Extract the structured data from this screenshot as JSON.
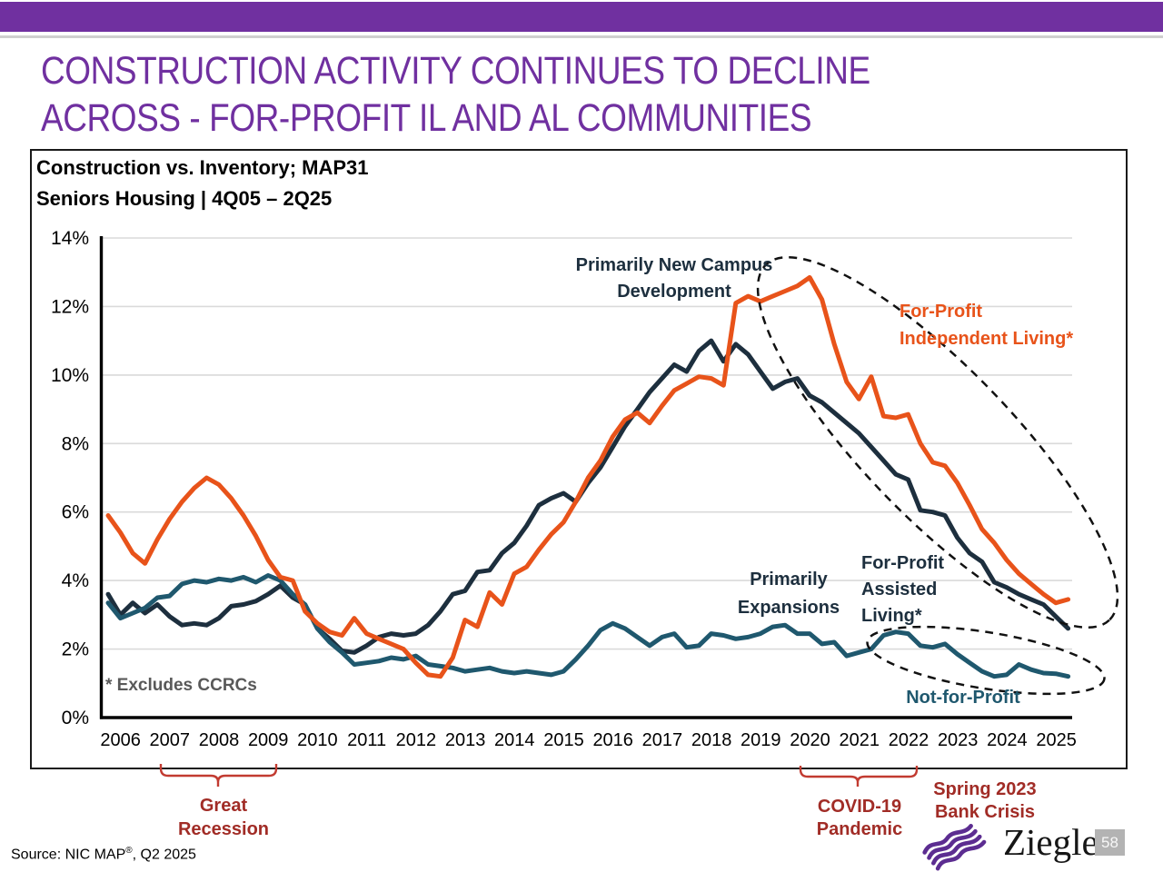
{
  "header": {
    "title_line1": "CONSTRUCTION ACTIVITY CONTINUES TO DECLINE",
    "title_line2": "ACROSS - FOR-PROFIT IL AND AL COMMUNITIES"
  },
  "chart": {
    "title_line1": "Construction vs. Inventory; MAP31",
    "title_line2": "Seniors Housing | 4Q05 – 2Q25",
    "footnote": "* Excludes CCRCs"
  },
  "annotations": {
    "new_campus": {
      "line1": "Primarily New Campus",
      "line2": "Development"
    },
    "il_label": {
      "line1": "For-Profit",
      "line2": "Independent Living*"
    },
    "expansions": {
      "line1": "Primarily",
      "line2": "Expansions"
    },
    "al_label": {
      "line1": "For-Profit",
      "line2": "Assisted",
      "line3": "Living*"
    },
    "nfp_label": "Not-for-Profit",
    "great_recession": {
      "line1": "Great",
      "line2": "Recession"
    },
    "covid": {
      "line1": "COVID-19",
      "line2": "Pandemic"
    },
    "bank_crisis": {
      "line1": "Spring 2023",
      "line2": "Bank Crisis"
    }
  },
  "footer": {
    "source_prefix": "Source: NIC MAP",
    "source_sup": "®",
    "source_suffix": ", Q2 2025",
    "logo_wordmark": "Ziegler",
    "page_number": "58"
  },
  "colors": {
    "accent_purple": "#7030A0",
    "logo_purple": "#5C2D91",
    "il_orange": "#E8531A",
    "al_navy": "#1D2F3E",
    "nfp_teal": "#1F586E",
    "annotation_red": "#A12C26",
    "brace_red": "#C23B31",
    "gridline": "#DADADA",
    "footnote_gray": "#595959",
    "axis_black": "#000000"
  },
  "chart_data": {
    "type": "line",
    "title": "Construction vs. Inventory; MAP31",
    "subtitle": "Seniors Housing | 4Q05 – 2Q25",
    "x_unit": "quarterly",
    "x_start": "4Q05",
    "x_end": "2Q25",
    "x_year_labels": [
      "2006",
      "2007",
      "2008",
      "2009",
      "2010",
      "2011",
      "2012",
      "2013",
      "2014",
      "2015",
      "2016",
      "2017",
      "2018",
      "2019",
      "2020",
      "2021",
      "2022",
      "2023",
      "2024",
      "2025"
    ],
    "y_tick_labels": [
      "14%",
      "12%",
      "10%",
      "8%",
      "6%",
      "4%",
      "2%",
      "0%"
    ],
    "ylim": [
      0,
      14
    ],
    "y_format": "percent",
    "grid": "horizontal",
    "legend_position": "inline-annotations",
    "series": [
      {
        "id": "al",
        "name": "For-Profit Assisted Living*",
        "color": "#1D2F3E",
        "values": [
          3.6,
          3.0,
          3.35,
          3.05,
          3.3,
          2.95,
          2.7,
          2.75,
          2.7,
          2.9,
          3.25,
          3.3,
          3.4,
          3.6,
          3.85,
          3.5,
          3.3,
          2.6,
          2.3,
          1.95,
          1.9,
          2.1,
          2.35,
          2.45,
          2.4,
          2.45,
          2.7,
          3.1,
          3.6,
          3.7,
          4.25,
          4.3,
          4.8,
          5.1,
          5.6,
          6.2,
          6.4,
          6.55,
          6.3,
          6.85,
          7.3,
          7.9,
          8.5,
          9.0,
          9.5,
          9.9,
          10.3,
          10.1,
          10.7,
          11.0,
          10.4,
          10.9,
          10.6,
          10.1,
          9.6,
          9.8,
          9.9,
          9.4,
          9.2,
          8.9,
          8.6,
          8.3,
          7.9,
          7.5,
          7.1,
          6.95,
          6.05,
          6.0,
          5.9,
          5.25,
          4.8,
          4.55,
          3.95,
          3.8,
          3.6,
          3.45,
          3.3,
          2.95,
          2.6
        ]
      },
      {
        "id": "nfp",
        "name": "Not-for-Profit",
        "color": "#1F586E",
        "values": [
          3.35,
          2.9,
          3.05,
          3.2,
          3.5,
          3.55,
          3.9,
          4.0,
          3.95,
          4.05,
          4.0,
          4.1,
          3.95,
          4.15,
          4.0,
          3.6,
          3.3,
          2.6,
          2.2,
          1.9,
          1.55,
          1.6,
          1.65,
          1.75,
          1.7,
          1.8,
          1.55,
          1.5,
          1.45,
          1.35,
          1.4,
          1.45,
          1.35,
          1.3,
          1.35,
          1.3,
          1.25,
          1.35,
          1.7,
          2.1,
          2.55,
          2.75,
          2.6,
          2.35,
          2.1,
          2.35,
          2.45,
          2.05,
          2.1,
          2.45,
          2.4,
          2.3,
          2.35,
          2.45,
          2.65,
          2.7,
          2.45,
          2.45,
          2.15,
          2.2,
          1.8,
          1.9,
          2.0,
          2.4,
          2.5,
          2.45,
          2.1,
          2.05,
          2.15,
          1.85,
          1.6,
          1.35,
          1.2,
          1.25,
          1.55,
          1.4,
          1.3,
          1.28,
          1.2
        ]
      },
      {
        "id": "il",
        "name": "For-Profit Independent Living*",
        "color": "#E8531A",
        "values": [
          5.9,
          5.4,
          4.8,
          4.5,
          5.2,
          5.8,
          6.3,
          6.7,
          7.0,
          6.8,
          6.4,
          5.9,
          5.3,
          4.6,
          4.1,
          4.0,
          3.1,
          2.75,
          2.5,
          2.4,
          2.9,
          2.45,
          2.3,
          2.15,
          2.0,
          1.6,
          1.25,
          1.2,
          1.75,
          2.85,
          2.65,
          3.65,
          3.3,
          4.2,
          4.4,
          4.9,
          5.35,
          5.7,
          6.3,
          7.0,
          7.5,
          8.2,
          8.7,
          8.9,
          8.6,
          9.1,
          9.55,
          9.75,
          9.95,
          9.9,
          9.7,
          12.1,
          12.3,
          12.15,
          12.3,
          12.45,
          12.6,
          12.85,
          12.2,
          10.9,
          9.8,
          9.3,
          9.95,
          8.8,
          8.75,
          8.85,
          8.0,
          7.45,
          7.35,
          6.85,
          6.2,
          5.5,
          5.1,
          4.6,
          4.2,
          3.9,
          3.6,
          3.35,
          3.45
        ]
      }
    ]
  }
}
